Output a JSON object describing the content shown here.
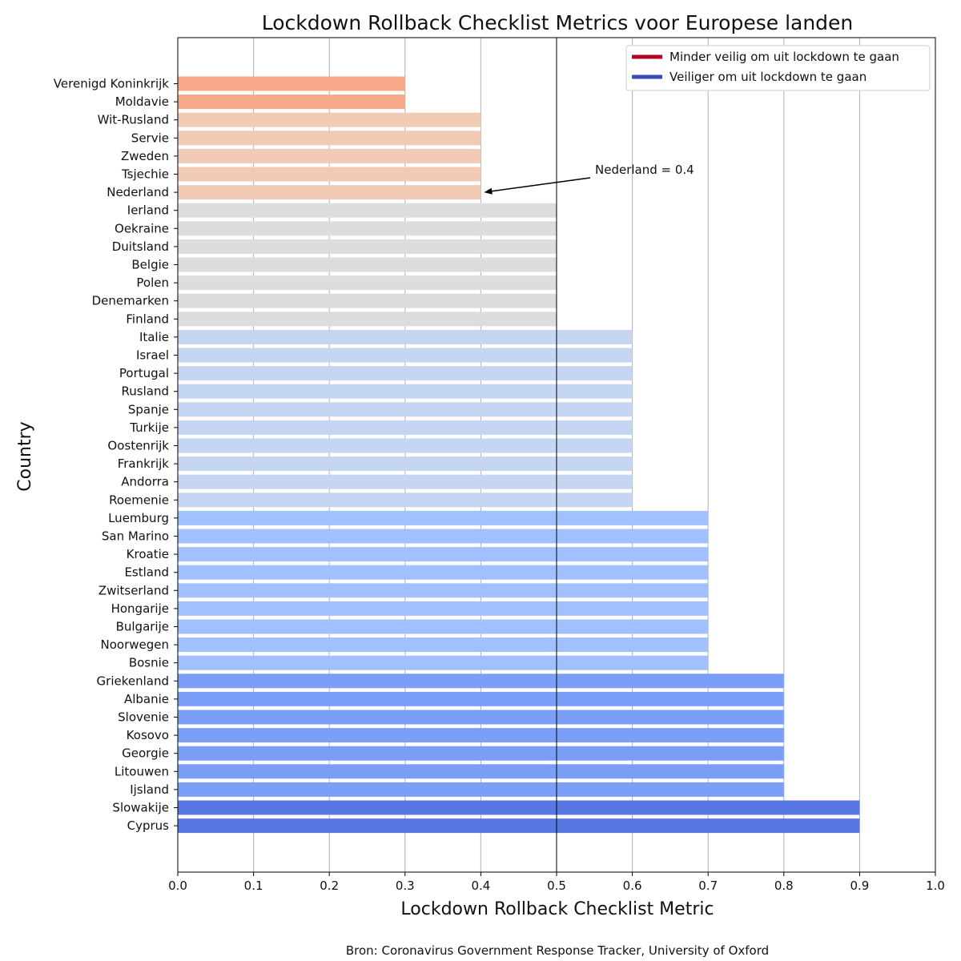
{
  "chart_data": {
    "type": "bar",
    "orientation": "horizontal",
    "title": "Lockdown Rollback Checklist Metrics voor Europese landen",
    "xlabel": "Lockdown Rollback Checklist Metric",
    "ylabel": "Country",
    "xlim": [
      0.0,
      1.0
    ],
    "xticks": [
      "0.0",
      "0.1",
      "0.2",
      "0.3",
      "0.4",
      "0.5",
      "0.6",
      "0.7",
      "0.8",
      "0.9",
      "1.0"
    ],
    "grid": "vertical",
    "reference_line": 0.5,
    "categories": [
      "Verenigd Koninkrijk",
      "Moldavie",
      "Wit-Rusland",
      "Servie",
      "Zweden",
      "Tsjechie",
      "Nederland",
      "Ierland",
      "Oekraine",
      "Duitsland",
      "Belgie",
      "Polen",
      "Denemarken",
      "Finland",
      "Italie",
      "Israel",
      "Portugal",
      "Rusland",
      "Spanje",
      "Turkije",
      "Oostenrijk",
      "Frankrijk",
      "Andorra",
      "Roemenie",
      "Luemburg",
      "San Marino",
      "Kroatie",
      "Estland",
      "Zwitserland",
      "Hongarije",
      "Bulgarije",
      "Noorwegen",
      "Bosnie",
      "Griekenland",
      "Albanie",
      "Slovenie",
      "Kosovo",
      "Georgie",
      "Litouwen",
      "Ijsland",
      "Slowakije",
      "Cyprus"
    ],
    "values": [
      0.3,
      0.3,
      0.4,
      0.4,
      0.4,
      0.4,
      0.4,
      0.5,
      0.5,
      0.5,
      0.5,
      0.5,
      0.5,
      0.5,
      0.6,
      0.6,
      0.6,
      0.6,
      0.6,
      0.6,
      0.6,
      0.6,
      0.6,
      0.6,
      0.7,
      0.7,
      0.7,
      0.7,
      0.7,
      0.7,
      0.7,
      0.7,
      0.7,
      0.8,
      0.8,
      0.8,
      0.8,
      0.8,
      0.8,
      0.8,
      0.9,
      0.9
    ],
    "value_colors": {
      "0.3": "#f7a889",
      "0.4": "#f2cbb7",
      "0.5": "#dcdddd",
      "0.6": "#c5d6f2",
      "0.7": "#a1c0ff",
      "0.8": "#7b9ff9",
      "0.9": "#5977e3"
    },
    "legend": {
      "placement": "top-right",
      "entries": [
        {
          "label": "Minder veilig om uit lockdown te gaan",
          "color": "#b40426"
        },
        {
          "label": "Veiliger om uit lockdown te gaan",
          "color": "#3b4cc0"
        }
      ]
    },
    "annotation": {
      "text": "Nederland = 0.4",
      "target_category": "Nederland",
      "target_value": 0.4
    },
    "source": "Bron: Coronavirus Government Response Tracker, University of Oxford"
  }
}
